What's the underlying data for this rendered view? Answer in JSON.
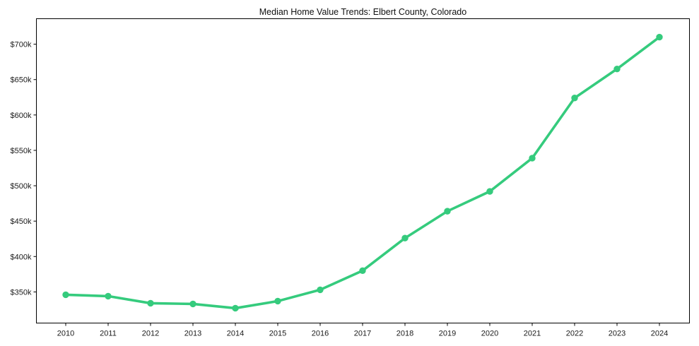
{
  "figure": {
    "background": "#ffffff",
    "axis_color": "#000000",
    "text_color": "#1a1a1a"
  },
  "chart_data": {
    "type": "line",
    "title": "Median Home Value Trends: Elbert County, Colorado",
    "categories": [
      "2010",
      "2011",
      "2012",
      "2013",
      "2014",
      "2015",
      "2016",
      "2017",
      "2018",
      "2019",
      "2020",
      "2021",
      "2022",
      "2023",
      "2024"
    ],
    "series": [
      {
        "color": "#35cb7d",
        "values": [
          346000,
          344000,
          334000,
          333000,
          327000,
          337000,
          353000,
          380000,
          426000,
          464000,
          492000,
          539000,
          624000,
          665000,
          710000
        ]
      }
    ],
    "xlabel": "",
    "ylabel": "",
    "ylim": [
      306000,
      736000
    ],
    "y_ticks": [
      350000,
      400000,
      450000,
      500000,
      550000,
      600000,
      650000,
      700000
    ],
    "y_tick_labels": [
      "$350k",
      "$400k",
      "$450k",
      "$500k",
      "$550k",
      "$600k",
      "$650k",
      "$700k"
    ],
    "grid": false,
    "legend": "none",
    "marker": "circle"
  }
}
